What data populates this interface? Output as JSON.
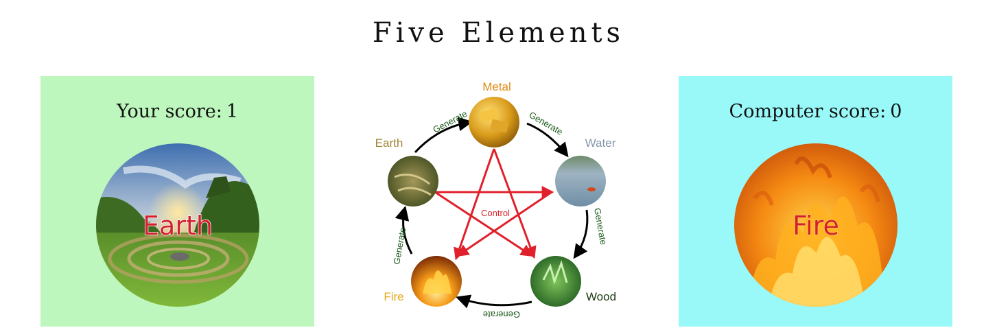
{
  "title": "Five Elements",
  "player": {
    "score_label": "Your score:",
    "score": "1",
    "choice_label": "Earth",
    "bg_color": "#bdf7bd"
  },
  "computer": {
    "score_label": "Computer score:",
    "score": "0",
    "choice_label": "Fire",
    "bg_color": "#99f9f9"
  },
  "diagram": {
    "elements": [
      "Metal",
      "Water",
      "Wood",
      "Fire",
      "Earth"
    ],
    "generate_label": "Generate",
    "control_label": "Control",
    "colors": {
      "metal": "#e08a14",
      "water": "#8596ab",
      "wood": "#1d3a12",
      "fire": "#e6a817",
      "earth": "#a08534",
      "generate": "#1a5a1a",
      "control": "#e0202a"
    }
  }
}
